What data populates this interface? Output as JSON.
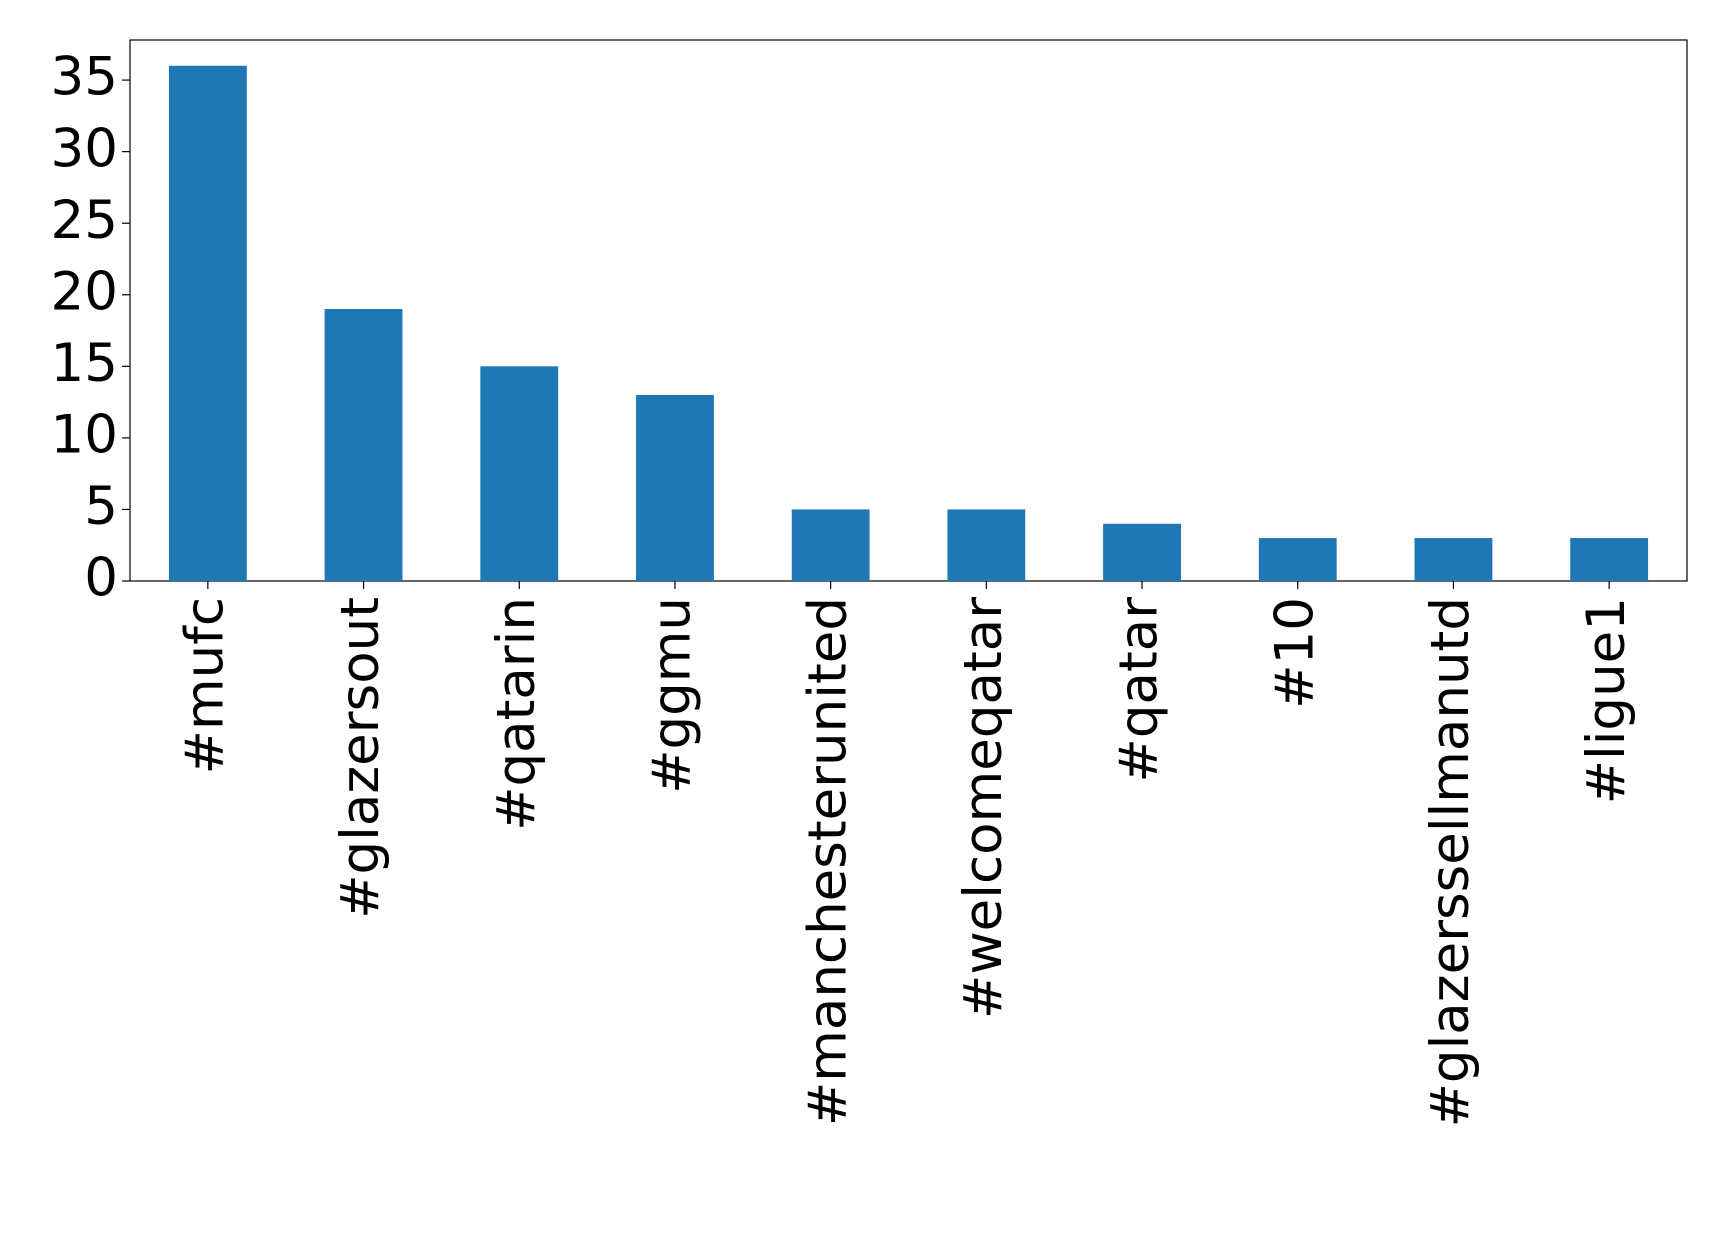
{
  "chart_data": {
    "type": "bar",
    "categories": [
      "#mufc",
      "#glazersout",
      "#qatarin",
      "#ggmu",
      "#manchesterunited",
      "#welcomeqatar",
      "#qatar",
      "#10",
      "#glazerssellmanutd",
      "#ligue1"
    ],
    "values": [
      36,
      19,
      15,
      13,
      5,
      5,
      4,
      3,
      3,
      3
    ],
    "color": "#1f77b4",
    "ylim": [
      0,
      37.8
    ],
    "yticks": [
      0,
      5,
      10,
      15,
      20,
      25,
      30,
      35
    ],
    "grid": false
  }
}
